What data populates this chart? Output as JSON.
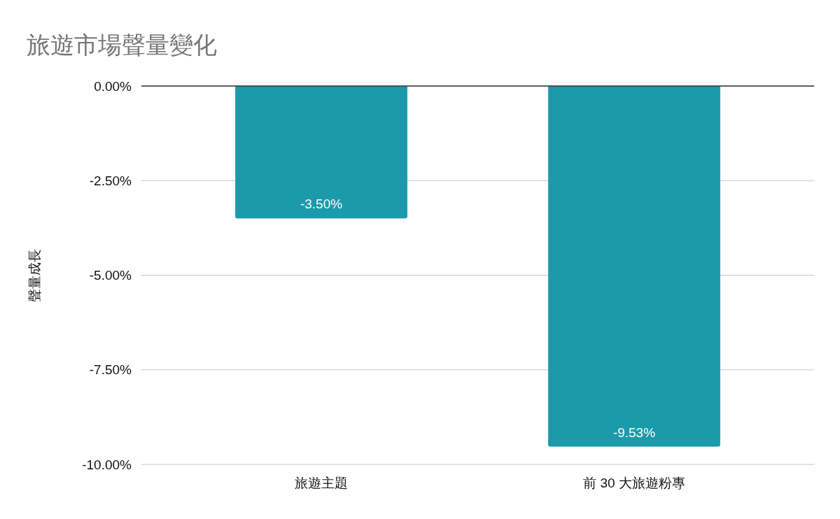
{
  "chart_data": {
    "type": "bar",
    "title": "旅遊市場聲量變化",
    "ylabel": "聲量成長",
    "categories": [
      "旅遊主題",
      "前 30 大旅遊粉專"
    ],
    "values": [
      -3.5,
      -9.53
    ],
    "color": "#1b9aab",
    "value_labels": [
      "-3.50%",
      "-9.53%"
    ],
    "ylim": [
      -10,
      0
    ],
    "yticks": [
      {
        "value": 0,
        "label": "0.00%"
      },
      {
        "value": -2.5,
        "label": "-2.50%"
      },
      {
        "value": -5,
        "label": "-5.00%"
      },
      {
        "value": -7.5,
        "label": "-7.50%"
      },
      {
        "value": -10,
        "label": "-10.00%"
      }
    ],
    "grid": "y"
  }
}
